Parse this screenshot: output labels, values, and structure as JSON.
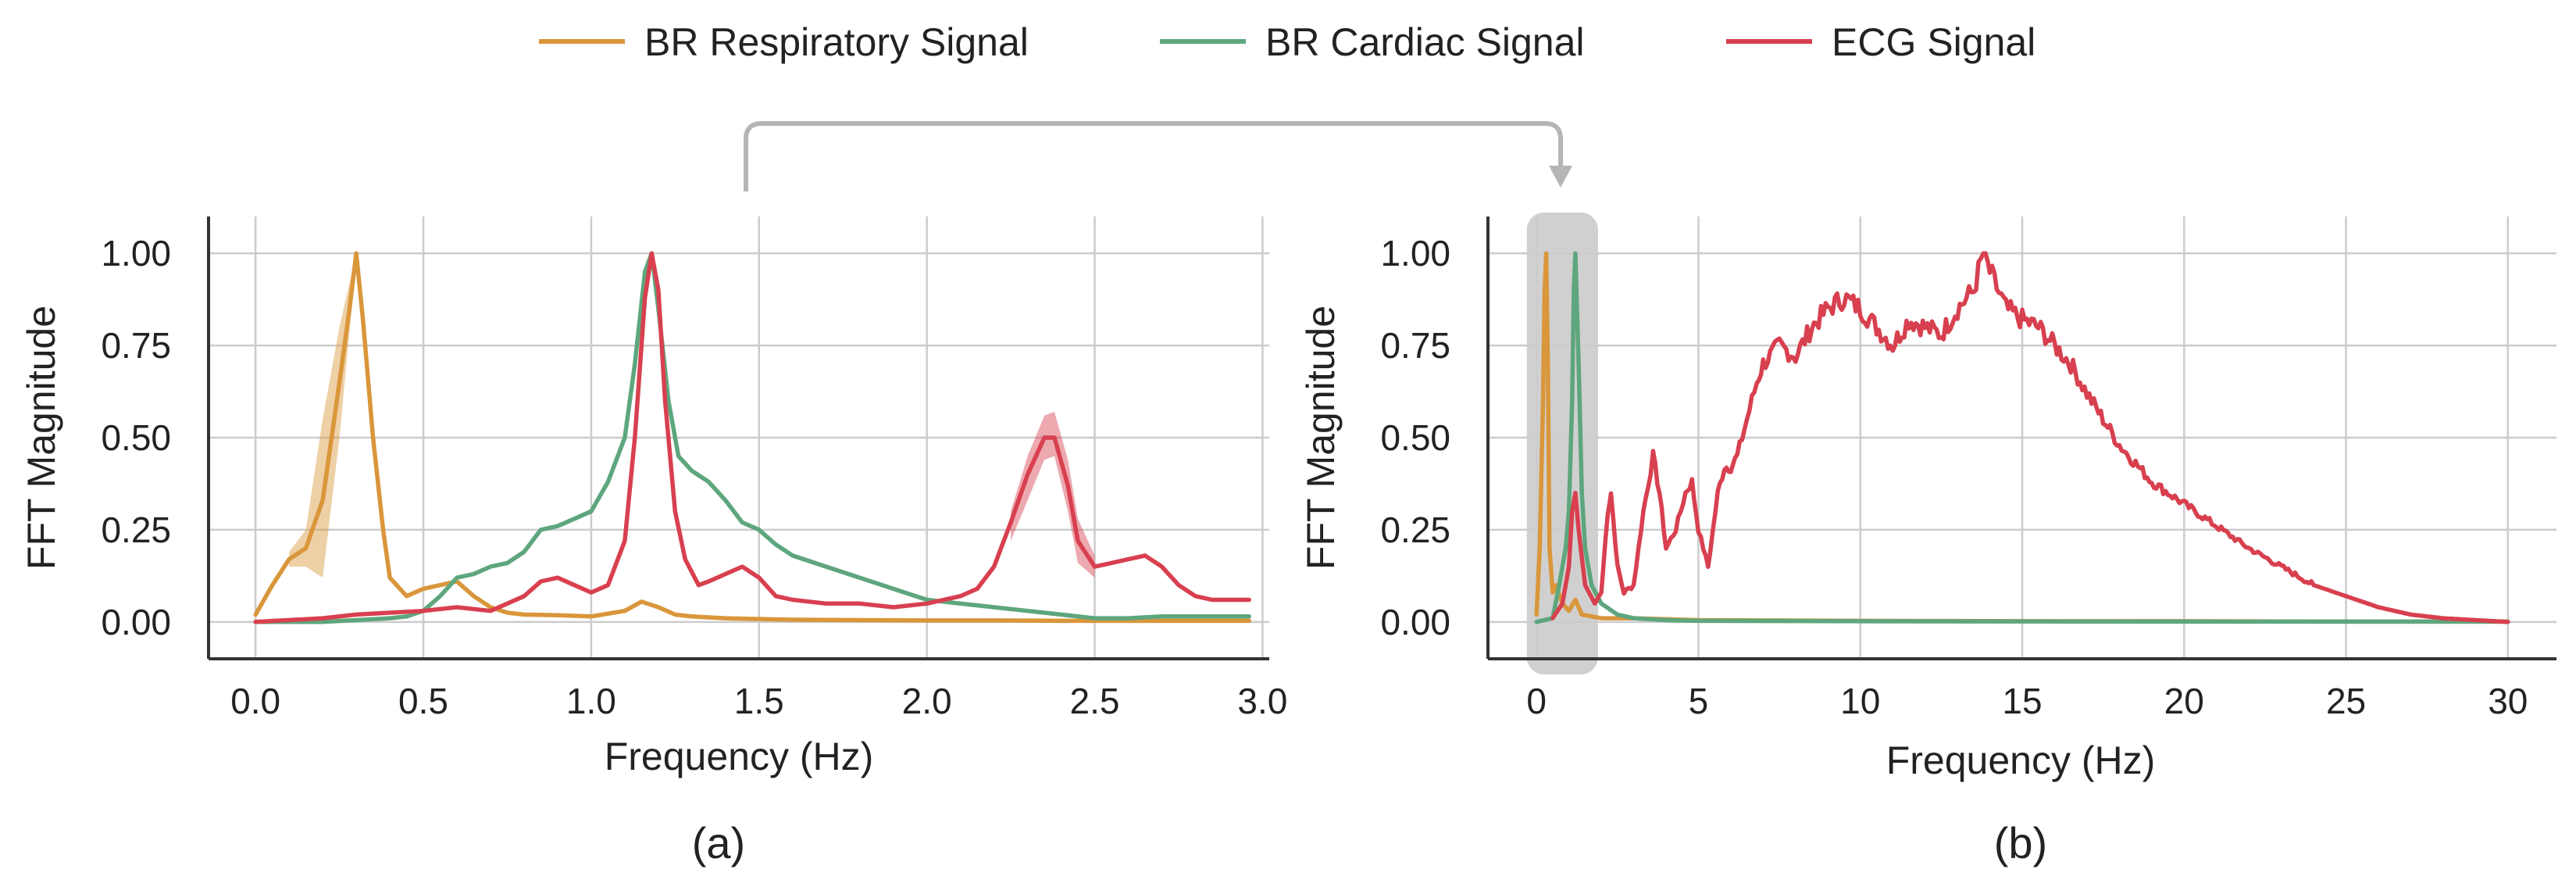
{
  "figure": {
    "legend": [
      {
        "name": "BR Respiratory Signal",
        "color": "#D9963A"
      },
      {
        "name": "BR Cardiac Signal",
        "color": "#5EA67D"
      },
      {
        "name": "ECG Signal",
        "color": "#D8404F"
      }
    ],
    "connector_color": "#B5B5B5",
    "highlight_color": "#D0D0D0"
  },
  "chart_data": [
    {
      "type": "line",
      "panel_label": "(a)",
      "xlabel": "Frequency (Hz)",
      "ylabel": "FFT Magnitude",
      "xlim": [
        -0.14,
        3.02
      ],
      "ylim": [
        -0.1,
        1.1
      ],
      "xticks": [
        0.0,
        0.5,
        1.0,
        1.5,
        2.0,
        2.5,
        3.0
      ],
      "xtick_labels": [
        "0.0",
        "0.5",
        "1.0",
        "1.5",
        "2.0",
        "2.5",
        "3.0"
      ],
      "yticks": [
        0.0,
        0.25,
        0.5,
        0.75,
        1.0
      ],
      "ytick_labels": [
        "0.00",
        "0.25",
        "0.50",
        "0.75",
        "1.00"
      ],
      "grid": true,
      "series": [
        {
          "name": "BR Respiratory Signal",
          "color": "#D9963A",
          "x": [
            0,
            0.05,
            0.1,
            0.15,
            0.2,
            0.25,
            0.28,
            0.3,
            0.32,
            0.35,
            0.38,
            0.4,
            0.45,
            0.5,
            0.55,
            0.6,
            0.65,
            0.7,
            0.75,
            0.8,
            0.9,
            1.0,
            1.1,
            1.15,
            1.2,
            1.25,
            1.3,
            1.4,
            1.5,
            1.6,
            1.8,
            2.0,
            2.2,
            2.4,
            2.6,
            2.8,
            2.96
          ],
          "y": [
            0.02,
            0.1,
            0.17,
            0.2,
            0.33,
            0.65,
            0.85,
            1.0,
            0.82,
            0.5,
            0.25,
            0.12,
            0.07,
            0.09,
            0.1,
            0.11,
            0.07,
            0.04,
            0.025,
            0.02,
            0.018,
            0.015,
            0.03,
            0.055,
            0.04,
            0.02,
            0.015,
            0.01,
            0.008,
            0.006,
            0.005,
            0.004,
            0.004,
            0.003,
            0.003,
            0.003,
            0.003
          ],
          "band_x": [
            0.1,
            0.15,
            0.2,
            0.25,
            0.3
          ],
          "band_lower": [
            0.15,
            0.15,
            0.12,
            0.5,
            0.98
          ],
          "band_upper": [
            0.19,
            0.25,
            0.55,
            0.8,
            1.0
          ]
        },
        {
          "name": "BR Cardiac Signal",
          "color": "#5EA67D",
          "x": [
            0,
            0.1,
            0.2,
            0.3,
            0.4,
            0.45,
            0.5,
            0.55,
            0.6,
            0.65,
            0.7,
            0.75,
            0.8,
            0.85,
            0.9,
            0.95,
            1.0,
            1.05,
            1.1,
            1.13,
            1.16,
            1.18,
            1.2,
            1.23,
            1.26,
            1.3,
            1.35,
            1.4,
            1.45,
            1.5,
            1.55,
            1.6,
            1.7,
            1.8,
            1.9,
            2.0,
            2.1,
            2.2,
            2.3,
            2.4,
            2.5,
            2.6,
            2.7,
            2.8,
            2.96
          ],
          "y": [
            0,
            0,
            0,
            0.005,
            0.01,
            0.015,
            0.03,
            0.07,
            0.12,
            0.13,
            0.15,
            0.16,
            0.19,
            0.25,
            0.26,
            0.28,
            0.3,
            0.38,
            0.5,
            0.7,
            0.95,
            1.0,
            0.85,
            0.6,
            0.45,
            0.41,
            0.38,
            0.33,
            0.27,
            0.25,
            0.21,
            0.18,
            0.15,
            0.12,
            0.09,
            0.06,
            0.05,
            0.04,
            0.03,
            0.02,
            0.01,
            0.01,
            0.015,
            0.015,
            0.015
          ]
        },
        {
          "name": "ECG Signal",
          "color": "#D8404F",
          "x": [
            0,
            0.2,
            0.3,
            0.4,
            0.5,
            0.6,
            0.7,
            0.75,
            0.8,
            0.85,
            0.9,
            0.95,
            1.0,
            1.05,
            1.1,
            1.13,
            1.16,
            1.18,
            1.2,
            1.22,
            1.25,
            1.28,
            1.32,
            1.35,
            1.4,
            1.45,
            1.5,
            1.55,
            1.6,
            1.7,
            1.8,
            1.9,
            2.0,
            2.1,
            2.15,
            2.2,
            2.25,
            2.3,
            2.35,
            2.38,
            2.42,
            2.45,
            2.5,
            2.55,
            2.6,
            2.65,
            2.7,
            2.75,
            2.8,
            2.85,
            2.96
          ],
          "y": [
            0,
            0.01,
            0.02,
            0.025,
            0.03,
            0.04,
            0.03,
            0.05,
            0.07,
            0.11,
            0.12,
            0.1,
            0.08,
            0.1,
            0.22,
            0.5,
            0.88,
            1.0,
            0.9,
            0.6,
            0.3,
            0.17,
            0.1,
            0.11,
            0.13,
            0.15,
            0.12,
            0.07,
            0.06,
            0.05,
            0.05,
            0.04,
            0.05,
            0.07,
            0.09,
            0.15,
            0.27,
            0.4,
            0.5,
            0.5,
            0.37,
            0.22,
            0.15,
            0.16,
            0.17,
            0.18,
            0.15,
            0.1,
            0.07,
            0.06,
            0.06
          ],
          "band_x": [
            2.25,
            2.3,
            2.35,
            2.38,
            2.42,
            2.45,
            2.5
          ],
          "band_lower": [
            0.22,
            0.33,
            0.44,
            0.45,
            0.3,
            0.16,
            0.12
          ],
          "band_upper": [
            0.3,
            0.45,
            0.56,
            0.57,
            0.44,
            0.28,
            0.18
          ]
        }
      ]
    },
    {
      "type": "line",
      "panel_label": "(b)",
      "xlabel": "Frequency (Hz)",
      "ylabel": "FFT Magnitude",
      "xlim": [
        -1.5,
        31.5
      ],
      "ylim": [
        -0.1,
        1.1
      ],
      "xticks": [
        0,
        5,
        10,
        15,
        20,
        25,
        30
      ],
      "xtick_labels": [
        "0",
        "5",
        "10",
        "15",
        "20",
        "25",
        "30"
      ],
      "yticks": [
        0.0,
        0.25,
        0.5,
        0.75,
        1.0
      ],
      "ytick_labels": [
        "0.00",
        "0.25",
        "0.50",
        "0.75",
        "1.00"
      ],
      "grid": true,
      "highlight_range": [
        -0.3,
        1.9
      ],
      "series": [
        {
          "name": "BR Respiratory Signal",
          "color": "#D9963A",
          "x": [
            0,
            0.1,
            0.2,
            0.25,
            0.3,
            0.35,
            0.4,
            0.5,
            0.6,
            0.8,
            1.0,
            1.2,
            1.4,
            2,
            3,
            5,
            10,
            15,
            20,
            25,
            30
          ],
          "y": [
            0.02,
            0.2,
            0.6,
            0.9,
            1.0,
            0.7,
            0.2,
            0.08,
            0.1,
            0.05,
            0.03,
            0.06,
            0.02,
            0.01,
            0.01,
            0.005,
            0.003,
            0.002,
            0.002,
            0.001,
            0.001
          ]
        },
        {
          "name": "BR Cardiac Signal",
          "color": "#5EA67D",
          "x": [
            0,
            0.5,
            0.7,
            0.8,
            0.9,
            1.0,
            1.1,
            1.15,
            1.2,
            1.3,
            1.4,
            1.5,
            1.7,
            2.0,
            2.5,
            3,
            4,
            5,
            10,
            20,
            30
          ],
          "y": [
            0,
            0.01,
            0.1,
            0.15,
            0.2,
            0.3,
            0.6,
            0.9,
            1.0,
            0.7,
            0.35,
            0.2,
            0.1,
            0.05,
            0.02,
            0.01,
            0.005,
            0.003,
            0.002,
            0.001,
            0.001
          ]
        },
        {
          "name": "ECG Signal",
          "color": "#D8404F",
          "x": [
            0.5,
            0.8,
            1.0,
            1.1,
            1.2,
            1.3,
            1.5,
            1.8,
            2.0,
            2.2,
            2.3,
            2.5,
            2.7,
            3.0,
            3.3,
            3.6,
            3.8,
            4.0,
            4.3,
            4.6,
            4.8,
            5.0,
            5.3,
            5.6,
            5.8,
            6.0,
            6.2,
            6.5,
            6.8,
            7.0,
            7.5,
            8.0,
            8.5,
            9.0,
            9.5,
            10.0,
            10.5,
            11.0,
            11.5,
            12.0,
            12.5,
            13.0,
            13.5,
            13.8,
            14.0,
            14.5,
            15.0,
            15.5,
            16.0,
            16.5,
            17.0,
            17.5,
            18.0,
            18.5,
            19.0,
            19.5,
            20.0,
            21.0,
            22.0,
            23.0,
            24.0,
            25.0,
            26.0,
            27.0,
            28.0,
            29.0,
            30.0
          ],
          "y": [
            0.01,
            0.05,
            0.15,
            0.3,
            0.35,
            0.25,
            0.1,
            0.05,
            0.08,
            0.3,
            0.35,
            0.15,
            0.08,
            0.1,
            0.3,
            0.45,
            0.35,
            0.2,
            0.25,
            0.35,
            0.38,
            0.25,
            0.15,
            0.35,
            0.42,
            0.42,
            0.45,
            0.55,
            0.65,
            0.7,
            0.75,
            0.72,
            0.8,
            0.85,
            0.88,
            0.85,
            0.8,
            0.75,
            0.82,
            0.8,
            0.78,
            0.85,
            0.9,
            1.0,
            0.95,
            0.85,
            0.82,
            0.8,
            0.75,
            0.7,
            0.62,
            0.55,
            0.48,
            0.43,
            0.38,
            0.35,
            0.32,
            0.26,
            0.2,
            0.15,
            0.1,
            0.07,
            0.04,
            0.02,
            0.01,
            0.005,
            0
          ]
        }
      ]
    }
  ]
}
